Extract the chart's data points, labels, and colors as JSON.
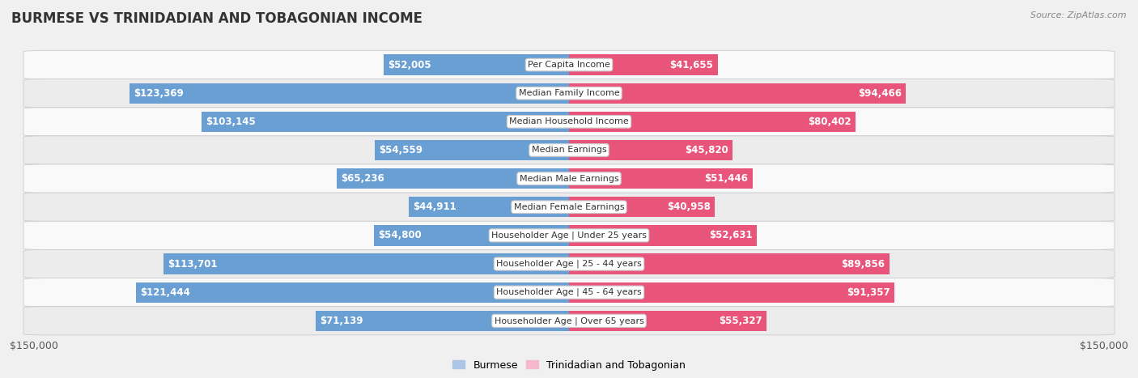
{
  "title": "BURMESE VS TRINIDADIAN AND TOBAGONIAN INCOME",
  "source": "Source: ZipAtlas.com",
  "categories": [
    "Per Capita Income",
    "Median Family Income",
    "Median Household Income",
    "Median Earnings",
    "Median Male Earnings",
    "Median Female Earnings",
    "Householder Age | Under 25 years",
    "Householder Age | 25 - 44 years",
    "Householder Age | 45 - 64 years",
    "Householder Age | Over 65 years"
  ],
  "burmese_values": [
    52005,
    123369,
    103145,
    54559,
    65236,
    44911,
    54800,
    113701,
    121444,
    71139
  ],
  "trinidadian_values": [
    41655,
    94466,
    80402,
    45820,
    51446,
    40958,
    52631,
    89856,
    91357,
    55327
  ],
  "burmese_labels": [
    "$52,005",
    "$123,369",
    "$103,145",
    "$54,559",
    "$65,236",
    "$44,911",
    "$54,800",
    "$113,701",
    "$121,444",
    "$71,139"
  ],
  "trinidadian_labels": [
    "$41,655",
    "$94,466",
    "$80,402",
    "$45,820",
    "$51,446",
    "$40,958",
    "$52,631",
    "$89,856",
    "$91,357",
    "$55,327"
  ],
  "burmese_color_light": "#adc6e8",
  "burmese_color_dark": "#6a9fd4",
  "trinidadian_color_light": "#f5b8cc",
  "trinidadian_color_dark": "#e8547a",
  "max_val": 150000,
  "bg_color": "#f0f0f0",
  "row_bg_odd": "#f9f9f9",
  "row_bg_even": "#ececec",
  "bar_height": 0.72,
  "legend_burmese": "Burmese",
  "legend_trinidadian": "Trinidadian and Tobagonian",
  "inside_threshold": 0.18
}
